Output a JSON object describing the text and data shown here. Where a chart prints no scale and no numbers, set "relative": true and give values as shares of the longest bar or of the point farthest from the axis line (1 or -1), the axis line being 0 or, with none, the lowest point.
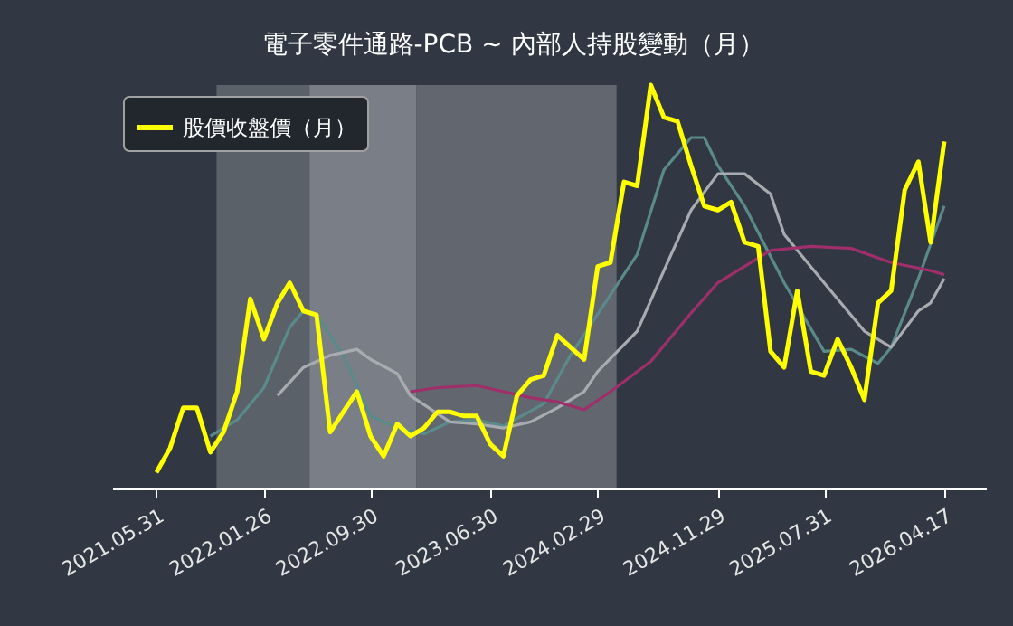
{
  "chart_data": {
    "type": "line",
    "title": "電子零件通路-PCB ~ 內部人持股變動（月）",
    "relative": true,
    "legend": "top left",
    "x": [
      "2021-05",
      "2021-06",
      "2021-07",
      "2021-08",
      "2021-09",
      "2021-10",
      "2021-11",
      "2021-12",
      "2022-01",
      "2022-02",
      "2022-03",
      "2022-04",
      "2022-05",
      "2022-06",
      "2022-07",
      "2022-08",
      "2022-09",
      "2022-10",
      "2022-11",
      "2022-12",
      "2023-01",
      "2023-02",
      "2023-03",
      "2023-04",
      "2023-05",
      "2023-06",
      "2023-07",
      "2023-08",
      "2023-09",
      "2023-10",
      "2023-11",
      "2023-12",
      "2024-01",
      "2024-02",
      "2024-03",
      "2024-04",
      "2024-05",
      "2024-06",
      "2024-07",
      "2024-08",
      "2024-09",
      "2024-10",
      "2024-11",
      "2024-12",
      "2025-01",
      "2025-02",
      "2025-03",
      "2025-04",
      "2025-05",
      "2025-06",
      "2025-07",
      "2025-08",
      "2025-09",
      "2025-10",
      "2025-11",
      "2025-12",
      "2026-01",
      "2026-02",
      "2026-03",
      "2026-04"
    ],
    "xlim": [
      "2021-01-20",
      "2026-07-05"
    ],
    "xticks": [
      {
        "value": "2021-05",
        "label": "2021.05.31"
      },
      {
        "value": "2022-01",
        "label": "2022.01.26"
      },
      {
        "value": "2022-09",
        "label": "2022.09.30"
      },
      {
        "value": "2023-06",
        "label": "2023.06.30"
      },
      {
        "value": "2024-02",
        "label": "2024.02.29"
      },
      {
        "value": "2024-11",
        "label": "2024.11.29"
      },
      {
        "value": "2025-07",
        "label": "2025.07.31"
      },
      {
        "value": "2026-04",
        "label": "2026.04.17"
      }
    ],
    "bands": [
      {
        "axis": "x",
        "from": "2021-09-15",
        "to": "2022-04-15",
        "color": "#5b6169"
      },
      {
        "axis": "x",
        "from": "2022-04-15",
        "to": "2022-12-15",
        "color": "#7a7f87"
      },
      {
        "axis": "x",
        "from": "2022-12-15",
        "to": "2024-03-15",
        "color": "#62676f"
      }
    ],
    "series": [
      {
        "color": "#5a8a8a",
        "x": [
          "2021-09",
          "2021-11",
          "2022-01",
          "2022-03",
          "2022-04",
          "2022-05",
          "2022-07",
          "2022-09",
          "2022-11",
          "2023-01",
          "2023-03",
          "2023-05",
          "2023-07",
          "2023-10",
          "2023-12",
          "2024-03",
          "2024-05",
          "2024-07",
          "2024-09",
          "2024-10",
          "2024-11",
          "2025-01",
          "2025-04",
          "2025-07",
          "2025-09",
          "2025-11",
          "2025-12",
          "2026-02",
          "2026-04"
        ],
        "values": [
          0.13,
          0.17,
          0.25,
          0.4,
          0.44,
          0.43,
          0.33,
          0.18,
          0.15,
          0.135,
          0.165,
          0.17,
          0.155,
          0.21,
          0.33,
          0.48,
          0.58,
          0.79,
          0.87,
          0.87,
          0.8,
          0.7,
          0.51,
          0.34,
          0.345,
          0.31,
          0.35,
          0.52,
          0.7
        ]
      },
      {
        "color": "#a8acb0",
        "x": [
          "2022-02",
          "2022-04",
          "2022-06",
          "2022-08",
          "2022-09",
          "2022-11",
          "2022-12",
          "2023-03",
          "2023-05",
          "2023-07",
          "2023-09",
          "2023-11",
          "2024-01",
          "2024-02",
          "2024-05",
          "2024-07",
          "2024-09",
          "2024-11",
          "2025-01",
          "2025-03",
          "2025-04",
          "2025-07",
          "2025-10",
          "2025-12",
          "2026-02",
          "2026-03",
          "2026-04"
        ],
        "values": [
          0.23,
          0.3,
          0.33,
          0.345,
          0.32,
          0.285,
          0.23,
          0.165,
          0.16,
          0.15,
          0.165,
          0.2,
          0.24,
          0.29,
          0.39,
          0.54,
          0.69,
          0.78,
          0.78,
          0.73,
          0.63,
          0.51,
          0.39,
          0.35,
          0.44,
          0.46,
          0.52
        ]
      },
      {
        "color": "#9e2f6a",
        "x": [
          "2022-12",
          "2023-02",
          "2023-05",
          "2023-09",
          "2023-11",
          "2024-01",
          "2024-03",
          "2024-06",
          "2024-09",
          "2024-11",
          "2025-03",
          "2025-06",
          "2025-09",
          "2025-12",
          "2026-03",
          "2026-04"
        ],
        "values": [
          0.24,
          0.25,
          0.255,
          0.225,
          0.215,
          0.195,
          0.24,
          0.315,
          0.435,
          0.51,
          0.59,
          0.6,
          0.595,
          0.56,
          0.54,
          0.53
        ]
      },
      {
        "name": "股價收盤價（月）",
        "color": "#ffff00",
        "values": [
          0.04,
          0.1,
          0.2,
          0.2,
          0.09,
          0.14,
          0.24,
          0.47,
          0.37,
          0.46,
          0.51,
          0.44,
          0.43,
          0.14,
          0.19,
          0.24,
          0.13,
          0.08,
          0.16,
          0.13,
          0.15,
          0.19,
          0.19,
          0.18,
          0.18,
          0.11,
          0.08,
          0.23,
          0.27,
          0.28,
          0.38,
          0.35,
          0.32,
          0.55,
          0.56,
          0.76,
          0.75,
          1,
          0.92,
          0.91,
          0.8,
          0.7,
          0.69,
          0.71,
          0.61,
          0.6,
          0.34,
          0.3,
          0.49,
          0.29,
          0.28,
          0.37,
          0.3,
          0.22,
          0.46,
          0.49,
          0.74,
          0.81,
          0.61,
          0.86
        ]
      }
    ]
  }
}
